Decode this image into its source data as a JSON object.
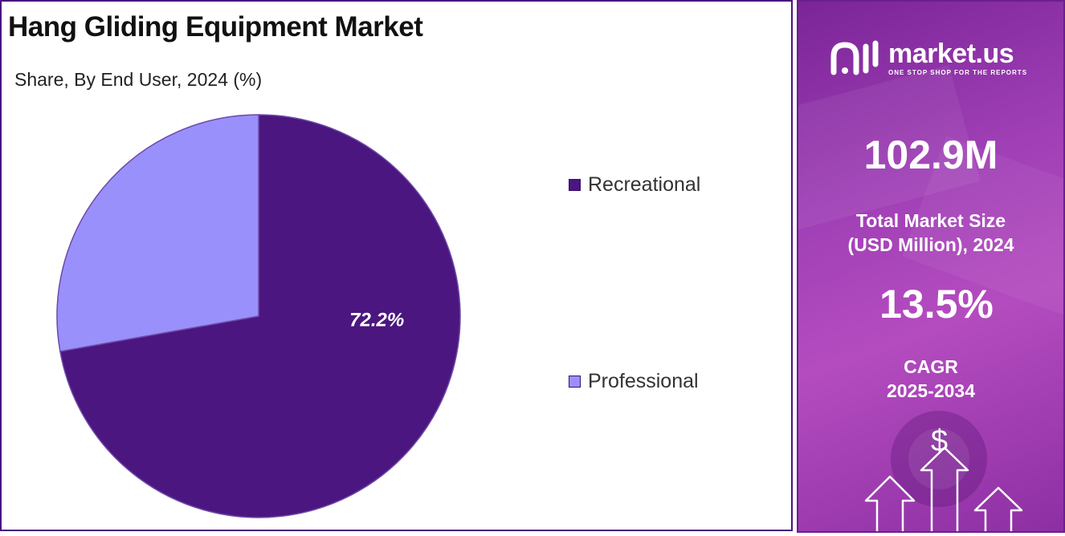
{
  "chart": {
    "title": "Hang Gliding Equipment Market",
    "subtitle": "Share, By End User, 2024 (%)"
  },
  "chart_data": {
    "type": "pie",
    "categories": [
      "Recreational",
      "Professional"
    ],
    "values": [
      72.2,
      27.8
    ],
    "data_labels": [
      "72.2%",
      ""
    ],
    "colors": [
      "#4b167f",
      "#9990fc"
    ],
    "legend_position": "right"
  },
  "legend": {
    "items": [
      {
        "label": "Recreational",
        "color": "#4b167f"
      },
      {
        "label": "Professional",
        "color": "#9990fc"
      }
    ]
  },
  "sidebar": {
    "brand_name": "market.us",
    "brand_tagline": "ONE STOP SHOP FOR THE REPORTS",
    "market_size_value": "102.9M",
    "market_size_label_1": "Total Market Size",
    "market_size_label_2": "(USD Million), 2024",
    "cagr_value": "13.5%",
    "cagr_label_1": "CAGR",
    "cagr_label_2": "2025-2034",
    "currency_symbol": "$",
    "accent_color": "#a03fb6"
  }
}
